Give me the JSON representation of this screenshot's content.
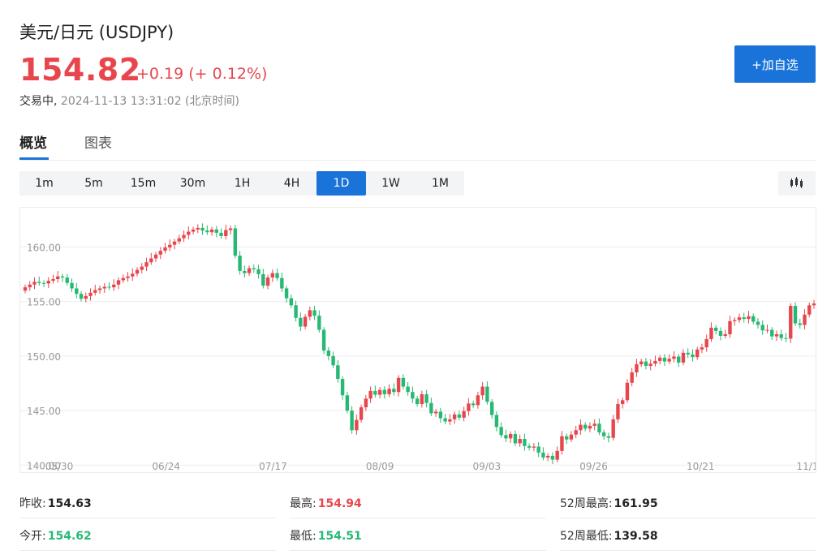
{
  "header": {
    "title": "美元/日元 (USDJPY)",
    "price": "154.82",
    "change": "+0.19 (+ 0.12%)",
    "status_label": "交易中,",
    "timestamp": "2024-11-13 13:31:02 (北京时间)",
    "add_watchlist_label": "+加自选"
  },
  "tabs": [
    {
      "label": "概览",
      "active": true
    },
    {
      "label": "图表",
      "active": false
    }
  ],
  "periods": [
    {
      "label": "1m",
      "active": false
    },
    {
      "label": "5m",
      "active": false
    },
    {
      "label": "15m",
      "active": false
    },
    {
      "label": "30m",
      "active": false
    },
    {
      "label": "1H",
      "active": false
    },
    {
      "label": "4H",
      "active": false
    },
    {
      "label": "1D",
      "active": true
    },
    {
      "label": "1W",
      "active": false
    },
    {
      "label": "1M",
      "active": false
    }
  ],
  "chart_type_icon": "candlestick-icon",
  "colors": {
    "up": "#e8464d",
    "down": "#27b974",
    "accent": "#1a73d9",
    "price": "#e8464d"
  },
  "chart_data": {
    "type": "candlestick",
    "y_ticks": [
      "160.00",
      "155.00",
      "150.00",
      "145.00",
      "140.00"
    ],
    "x_ticks": [
      "05/30",
      "06/24",
      "07/17",
      "08/09",
      "09/03",
      "09/26",
      "10/21",
      "11/1"
    ],
    "ylim": [
      139.8,
      163.3
    ],
    "grid": true,
    "close": [
      156.3,
      156.55,
      156.8,
      156.7,
      156.65,
      156.9,
      157.05,
      157.3,
      157.2,
      156.7,
      156.2,
      155.7,
      155.25,
      155.5,
      155.8,
      156.05,
      156.2,
      156.35,
      156.3,
      156.55,
      156.95,
      157.15,
      157.3,
      157.55,
      157.9,
      158.2,
      158.6,
      158.95,
      159.3,
      159.65,
      159.95,
      160.2,
      160.5,
      160.8,
      161.1,
      161.4,
      161.6,
      161.75,
      161.5,
      161.35,
      161.6,
      161.3,
      161.0,
      161.55,
      161.7,
      159.2,
      157.8,
      157.6,
      158.05,
      157.95,
      157.5,
      156.45,
      157.2,
      157.6,
      157.15,
      156.2,
      155.3,
      154.65,
      153.5,
      152.7,
      153.6,
      154.2,
      153.7,
      152.4,
      150.5,
      150.0,
      149.15,
      147.9,
      146.4,
      145.0,
      143.2,
      144.15,
      145.3,
      146.1,
      146.8,
      146.45,
      146.9,
      146.5,
      147.0,
      146.7,
      148.0,
      147.2,
      146.7,
      146.1,
      145.6,
      146.5,
      145.7,
      144.75,
      144.9,
      144.3,
      144.0,
      144.2,
      144.65,
      144.35,
      144.95,
      145.65,
      145.5,
      146.4,
      147.2,
      145.8,
      144.6,
      143.5,
      142.75,
      142.45,
      142.85,
      142.0,
      142.4,
      141.75,
      141.6,
      141.7,
      141.15,
      140.7,
      140.85,
      140.5,
      141.3,
      142.65,
      142.35,
      142.8,
      143.2,
      143.7,
      143.35,
      143.6,
      143.8,
      143.0,
      142.65,
      142.5,
      144.2,
      145.6,
      145.95,
      147.55,
      148.5,
      149.25,
      149.5,
      149.1,
      149.3,
      149.55,
      149.85,
      149.5,
      149.75,
      149.95,
      149.4,
      150.3,
      150.15,
      149.9,
      150.6,
      150.8,
      151.55,
      152.6,
      152.3,
      151.85,
      152.0,
      153.2,
      153.3,
      153.55,
      153.4,
      153.65,
      153.15,
      152.85,
      152.35,
      152.4,
      151.8,
      152.0,
      151.65,
      151.6,
      154.6,
      153.0,
      152.85,
      153.8,
      154.65,
      154.82
    ]
  },
  "stats": [
    {
      "label": "昨收:",
      "value": "154.63",
      "tone": "neutral"
    },
    {
      "label": "最高:",
      "value": "154.94",
      "tone": "up"
    },
    {
      "label": "52周最高:",
      "value": "161.95",
      "tone": "neutral"
    },
    {
      "label": "今开:",
      "value": "154.62",
      "tone": "down"
    },
    {
      "label": "最低:",
      "value": "154.51",
      "tone": "down"
    },
    {
      "label": "52周最低:",
      "value": "139.58",
      "tone": "neutral"
    }
  ]
}
